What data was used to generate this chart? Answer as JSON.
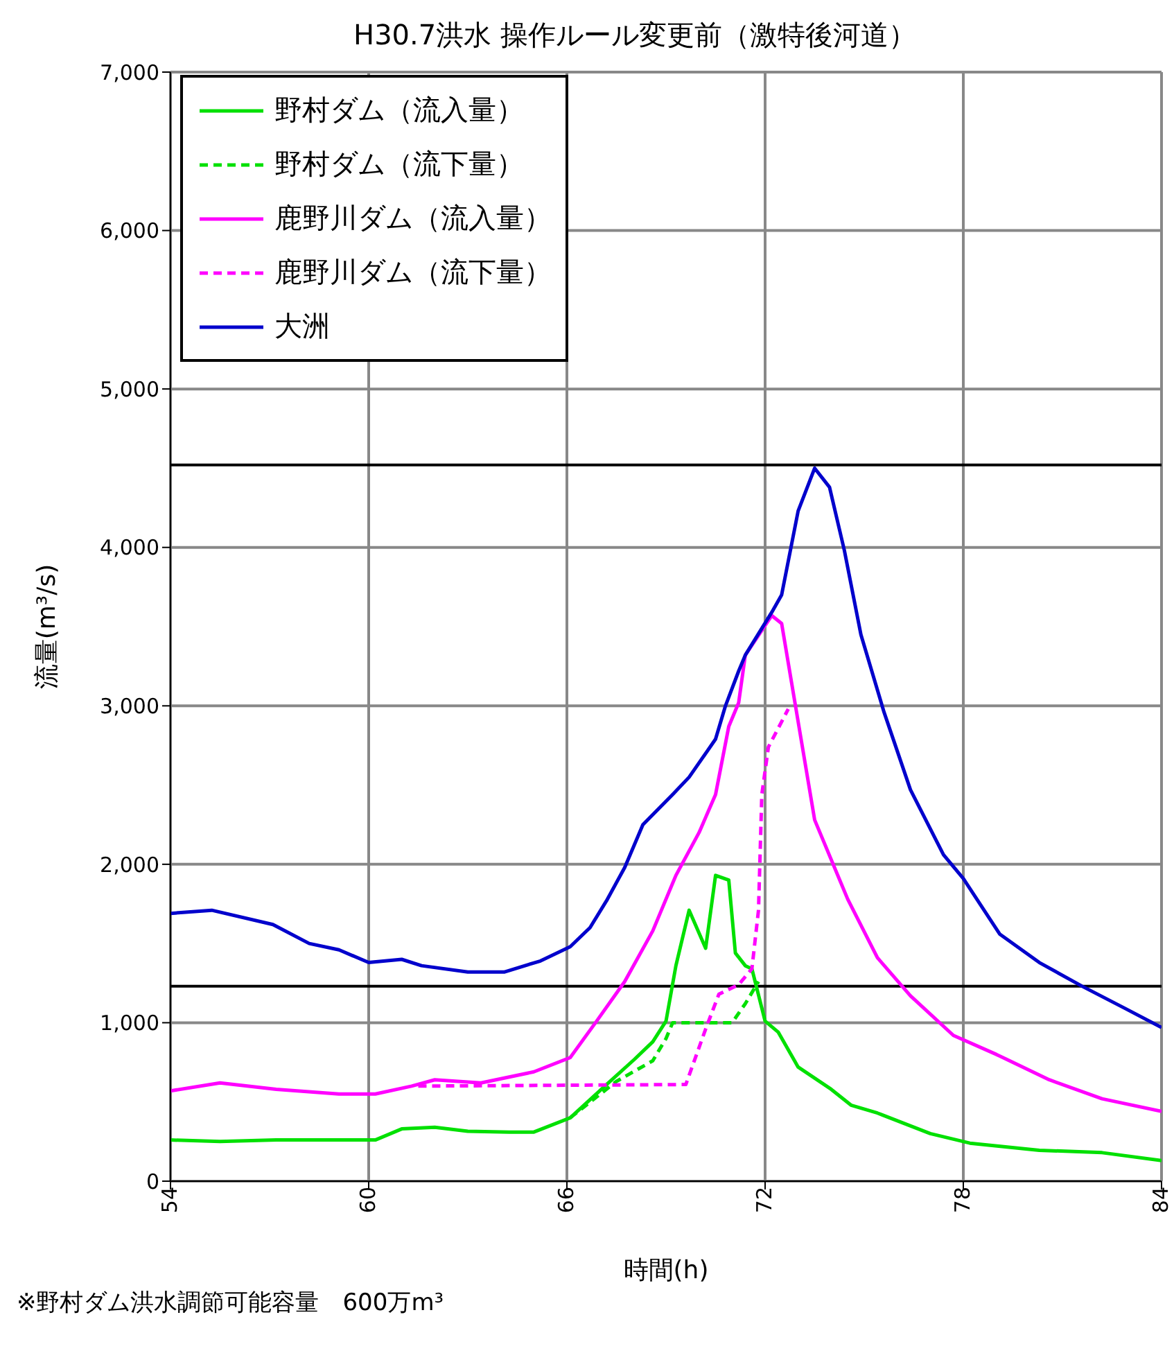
{
  "chart_data": {
    "type": "line",
    "title": "H30.7洪水  操作ルール変更前（激特後河道）",
    "xlabel": "時間(h)",
    "ylabel": "流量(m³/s)",
    "xlim": [
      54,
      84
    ],
    "xticks": [
      54,
      60,
      66,
      72,
      78,
      84
    ],
    "ylim": [
      0,
      7000
    ],
    "yticks": [
      0,
      {
        "value": 1000,
        "label": "1,000"
      },
      {
        "value": 2000,
        "label": "2,000"
      },
      {
        "value": 3000,
        "label": "3,000"
      },
      {
        "value": 4000,
        "label": "4,000"
      },
      {
        "value": 5000,
        "label": "5,000"
      },
      {
        "value": 6000,
        "label": "6,000"
      },
      {
        "value": 7000,
        "label": "7,000"
      }
    ],
    "grid": true,
    "legend": "top left",
    "marker": "none",
    "series": [
      {
        "name": "野村ダム（流入量）",
        "color": "#00e000",
        "line_style": "solid",
        "x": [
          54,
          55.5,
          57.2,
          59.1,
          60.2,
          61,
          62,
          63,
          64.25,
          65,
          66.1,
          67.2,
          68.05,
          68.6,
          69,
          69.3,
          69.7,
          70.2,
          70.5,
          70.9,
          71.1,
          71.4,
          71.6,
          72,
          72.4,
          73,
          74,
          74.6,
          75.4,
          77,
          78.2,
          80.3,
          82.2,
          84
        ],
        "values": [
          260,
          250,
          260,
          260,
          260,
          330,
          340,
          315,
          310,
          310,
          400,
          610,
          770,
          880,
          1010,
          1360,
          1710,
          1470,
          1930,
          1900,
          1440,
          1360,
          1340,
          1010,
          940,
          720,
          580,
          480,
          430,
          300,
          240,
          195,
          180,
          130
        ]
      },
      {
        "name": "野村ダム（流下量）",
        "color": "#00e000",
        "line_style": "dashed",
        "x": [
          66.1,
          67.5,
          68.6,
          69,
          69.2,
          71,
          71.4,
          71.8
        ],
        "values": [
          400,
          630,
          760,
          900,
          1000,
          1000,
          1120,
          1260
        ]
      },
      {
        "name": "鹿野川ダム（流入量）",
        "color": "#ff00ff",
        "line_style": "solid",
        "x": [
          54,
          55.5,
          57.2,
          59.1,
          60.2,
          61.3,
          62,
          63.4,
          65,
          66.1,
          66.9,
          67.75,
          68.6,
          69.3,
          70,
          70.5,
          70.9,
          71.2,
          71.4,
          72.2,
          72.5,
          73,
          73.5,
          74.5,
          75.4,
          76.4,
          77.7,
          79,
          80.6,
          82.2,
          84
        ],
        "values": [
          570,
          620,
          580,
          550,
          550,
          600,
          640,
          620,
          690,
          780,
          1010,
          1260,
          1580,
          1930,
          2200,
          2440,
          2870,
          3020,
          3320,
          3570,
          3520,
          2900,
          2280,
          1780,
          1410,
          1170,
          920,
          800,
          640,
          520,
          440
        ]
      },
      {
        "name": "鹿野川ダム（流下量）",
        "color": "#ff00ff",
        "line_style": "dashed",
        "x": [
          61.5,
          69.6,
          70.2,
          70.6,
          71.2,
          71.6,
          71.8,
          71.9,
          72.1,
          72.7
        ],
        "values": [
          600,
          610,
          960,
          1180,
          1240,
          1340,
          1710,
          2440,
          2740,
          2980
        ]
      },
      {
        "name": "大洲",
        "color": "#0000cc",
        "line_style": "solid",
        "x": [
          54,
          55.25,
          57.1,
          58.2,
          59.1,
          60,
          61,
          61.6,
          63,
          64.1,
          65.2,
          66.1,
          66.7,
          67.2,
          67.75,
          68.3,
          69.2,
          69.7,
          70.5,
          70.8,
          71.2,
          71.4,
          72.2,
          72.5,
          73,
          73.5,
          73.95,
          74.4,
          74.9,
          75.6,
          76.4,
          77.4,
          78,
          79.1,
          80.3,
          81.6,
          82.9,
          84
        ],
        "values": [
          1690,
          1710,
          1620,
          1500,
          1460,
          1380,
          1400,
          1360,
          1320,
          1320,
          1390,
          1480,
          1600,
          1770,
          1980,
          2250,
          2440,
          2550,
          2790,
          3000,
          3220,
          3320,
          3590,
          3700,
          4230,
          4500,
          4380,
          3980,
          3450,
          2960,
          2470,
          2060,
          1910,
          1560,
          1380,
          1230,
          1090,
          970
        ]
      }
    ],
    "ref_lines": [
      {
        "axis": "y",
        "value": 4520,
        "color": "#000000"
      },
      {
        "axis": "y",
        "value": 1230,
        "color": "#000000"
      }
    ],
    "annotations": [
      "※野村ダム洪水調節可能容量　600万m³"
    ]
  }
}
